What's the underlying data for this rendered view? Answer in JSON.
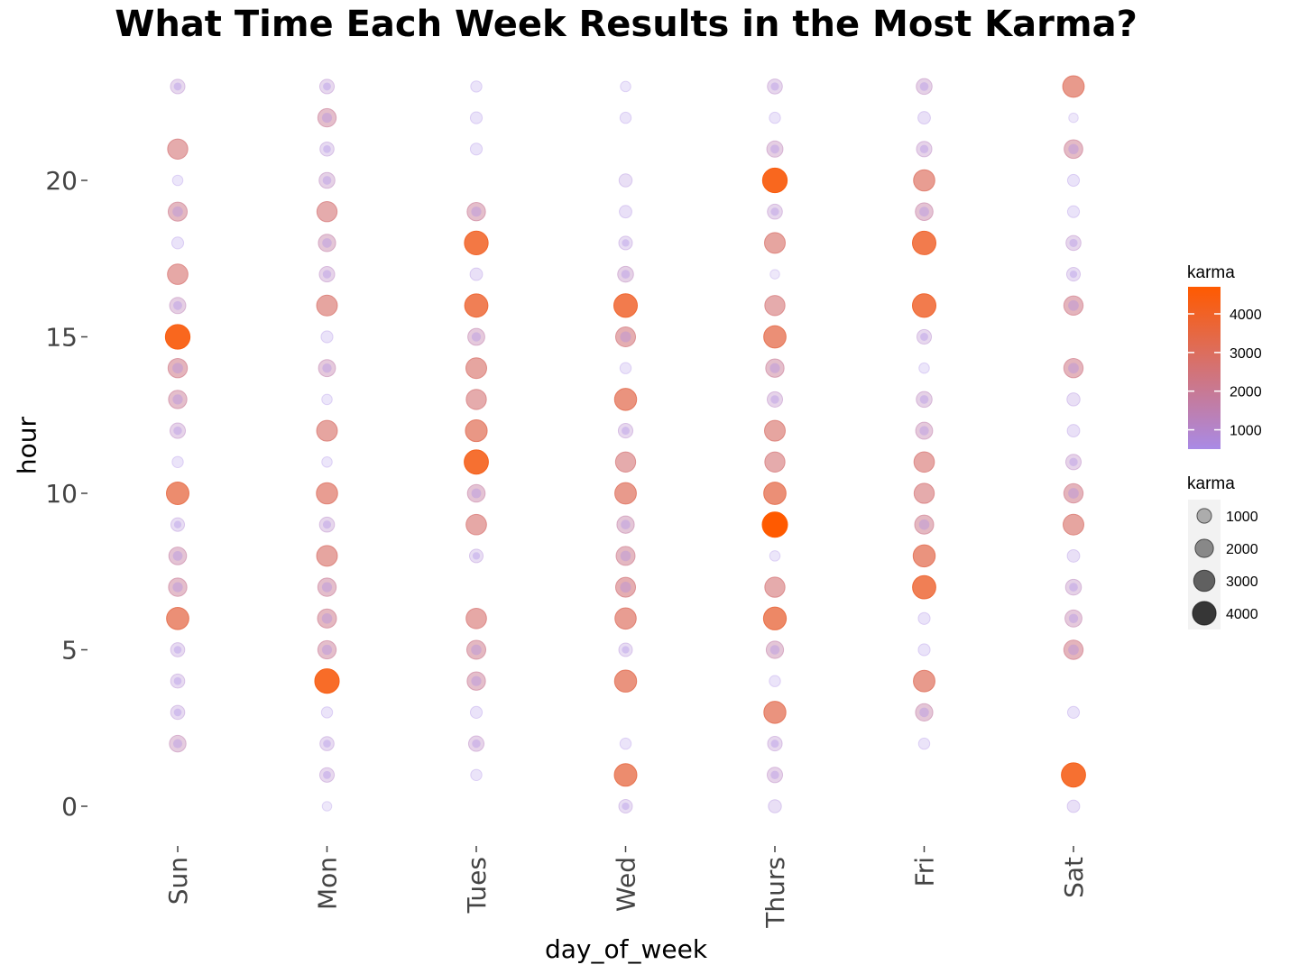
{
  "chart_data": {
    "type": "scatter",
    "title": "What Time Each Week Results in the Most Karma?",
    "xlabel": "day_of_week",
    "ylabel": "hour",
    "categories": [
      "Sun",
      "Mon",
      "Tues",
      "Wed",
      "Thurs",
      "Fri",
      "Sat"
    ],
    "ylim": [
      -1,
      24
    ],
    "yticks": [
      0,
      5,
      10,
      15,
      20
    ],
    "color_scale": {
      "low": "#a98ae6",
      "high": "#ff5a00",
      "min": 500,
      "max": 4700
    },
    "legend": {
      "color_title": "karma",
      "color_breaks": [
        4000,
        3000,
        2000,
        1000
      ],
      "size_title": "karma",
      "size_breaks": [
        1000,
        2000,
        3000,
        4000
      ]
    },
    "series": [
      {
        "day": "Sun",
        "points": [
          [
            23,
            1000
          ],
          [
            21,
            2600
          ],
          [
            20,
            300
          ],
          [
            19,
            2200
          ],
          [
            18,
            500
          ],
          [
            17,
            2700
          ],
          [
            16,
            1400
          ],
          [
            15,
            4400
          ],
          [
            14,
            2300
          ],
          [
            13,
            2000
          ],
          [
            12,
            1200
          ],
          [
            11,
            400
          ],
          [
            10,
            3500
          ],
          [
            9,
            800
          ],
          [
            8,
            1800
          ],
          [
            7,
            2000
          ],
          [
            6,
            3400
          ],
          [
            5,
            900
          ],
          [
            4,
            900
          ],
          [
            3,
            900
          ],
          [
            2,
            1500
          ]
        ]
      },
      {
        "day": "Mon",
        "points": [
          [
            23,
            1000
          ],
          [
            22,
            2000
          ],
          [
            21,
            900
          ],
          [
            20,
            1300
          ],
          [
            19,
            2600
          ],
          [
            18,
            1700
          ],
          [
            17,
            1200
          ],
          [
            16,
            2800
          ],
          [
            15,
            500
          ],
          [
            14,
            1600
          ],
          [
            13,
            300
          ],
          [
            12,
            2800
          ],
          [
            11,
            300
          ],
          [
            10,
            3000
          ],
          [
            9,
            1100
          ],
          [
            8,
            2800
          ],
          [
            7,
            2000
          ],
          [
            6,
            2200
          ],
          [
            5,
            2000
          ],
          [
            4,
            4300
          ],
          [
            3,
            400
          ],
          [
            2,
            900
          ],
          [
            1,
            1000
          ],
          [
            0,
            200
          ]
        ]
      },
      {
        "day": "Tues",
        "points": [
          [
            23,
            400
          ],
          [
            22,
            500
          ],
          [
            21,
            500
          ],
          [
            19,
            2000
          ],
          [
            18,
            4000
          ],
          [
            17,
            600
          ],
          [
            16,
            3800
          ],
          [
            15,
            1600
          ],
          [
            14,
            2800
          ],
          [
            13,
            2600
          ],
          [
            12,
            3200
          ],
          [
            11,
            4200
          ],
          [
            10,
            1800
          ],
          [
            9,
            2700
          ],
          [
            8,
            800
          ],
          [
            6,
            2700
          ],
          [
            5,
            2200
          ],
          [
            4,
            2000
          ],
          [
            3,
            500
          ],
          [
            2,
            1200
          ],
          [
            1,
            400
          ]
        ]
      },
      {
        "day": "Wed",
        "points": [
          [
            23,
            300
          ],
          [
            22,
            400
          ],
          [
            20,
            700
          ],
          [
            19,
            600
          ],
          [
            18,
            800
          ],
          [
            17,
            1300
          ],
          [
            16,
            3900
          ],
          [
            15,
            2500
          ],
          [
            14,
            400
          ],
          [
            13,
            3300
          ],
          [
            12,
            1000
          ],
          [
            11,
            2600
          ],
          [
            10,
            3100
          ],
          [
            9,
            1700
          ],
          [
            8,
            2200
          ],
          [
            7,
            2500
          ],
          [
            6,
            3000
          ],
          [
            5,
            800
          ],
          [
            4,
            3300
          ],
          [
            2,
            400
          ],
          [
            1,
            3500
          ],
          [
            0,
            800
          ]
        ]
      },
      {
        "day": "Thurs",
        "points": [
          [
            23,
            1100
          ],
          [
            22,
            400
          ],
          [
            21,
            1400
          ],
          [
            20,
            4400
          ],
          [
            19,
            1100
          ],
          [
            18,
            2800
          ],
          [
            17,
            200
          ],
          [
            16,
            2600
          ],
          [
            15,
            3400
          ],
          [
            14,
            2000
          ],
          [
            13,
            1200
          ],
          [
            12,
            2800
          ],
          [
            11,
            2600
          ],
          [
            10,
            3400
          ],
          [
            9,
            4700
          ],
          [
            8,
            300
          ],
          [
            7,
            2600
          ],
          [
            6,
            3600
          ],
          [
            5,
            1700
          ],
          [
            4,
            400
          ],
          [
            3,
            3300
          ],
          [
            2,
            1000
          ],
          [
            1,
            1200
          ],
          [
            0,
            700
          ]
        ]
      },
      {
        "day": "Fri",
        "points": [
          [
            23,
            1300
          ],
          [
            22,
            600
          ],
          [
            21,
            1200
          ],
          [
            20,
            3000
          ],
          [
            19,
            1800
          ],
          [
            18,
            3900
          ],
          [
            16,
            3900
          ],
          [
            15,
            1000
          ],
          [
            14,
            300
          ],
          [
            13,
            1300
          ],
          [
            12,
            1600
          ],
          [
            11,
            2700
          ],
          [
            10,
            2600
          ],
          [
            9,
            2200
          ],
          [
            8,
            3300
          ],
          [
            7,
            3800
          ],
          [
            6,
            500
          ],
          [
            5,
            500
          ],
          [
            4,
            3100
          ],
          [
            3,
            1700
          ],
          [
            2,
            400
          ]
        ]
      },
      {
        "day": "Sat",
        "points": [
          [
            23,
            3100
          ],
          [
            22,
            200
          ],
          [
            21,
            2100
          ],
          [
            20,
            500
          ],
          [
            19,
            500
          ],
          [
            18,
            1100
          ],
          [
            17,
            800
          ],
          [
            16,
            2300
          ],
          [
            14,
            2300
          ],
          [
            13,
            700
          ],
          [
            12,
            600
          ],
          [
            11,
            1200
          ],
          [
            10,
            2300
          ],
          [
            9,
            2800
          ],
          [
            8,
            600
          ],
          [
            7,
            1300
          ],
          [
            6,
            1600
          ],
          [
            5,
            2300
          ],
          [
            3,
            500
          ],
          [
            1,
            4200
          ],
          [
            0,
            600
          ]
        ]
      }
    ]
  }
}
